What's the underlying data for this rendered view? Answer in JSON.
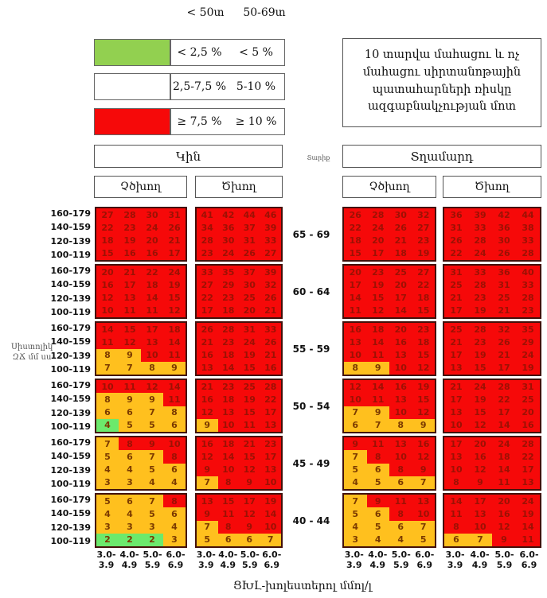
{
  "top_headers": {
    "lt50": "< 50տ",
    "a5069": "50-69տ"
  },
  "legend": {
    "rows": [
      {
        "swatch": "legend_green",
        "label_lt50": "< 2,5 %",
        "label_50_69": "< 5 %"
      },
      {
        "swatch": "white",
        "label_lt50": "2,5-7,5 %",
        "label_50_69": "5-10 %"
      },
      {
        "swatch": "red",
        "label_lt50": "≥ 7,5 %",
        "label_50_69": "≥ 10 %"
      }
    ]
  },
  "info_box": "10 տարվա մահացու և ոչ մահացու սիրտանոթային պատահարների ռիսկը ազգաբնակչության մոտ",
  "headers": {
    "women": "Կին",
    "men": "Տղամարդ",
    "age_axis": "Տարիք",
    "nonsmoker": "Չծխող",
    "smoker": "Ծխող"
  },
  "axes": {
    "bp_label_line1": "Սիստոլիկ",
    "bp_label_line2": "ԶՃ մմ սս",
    "bp_rows": [
      "160-179",
      "140-159",
      "120-139",
      "100-119"
    ],
    "age_groups": [
      "65 - 69",
      "60 - 64",
      "55 - 59",
      "50 - 54",
      "45 - 49",
      "40 - 44"
    ],
    "chol_ticks": [
      [
        "3.0-",
        "3.9"
      ],
      [
        "4.0-",
        "4.9"
      ],
      [
        "5.0-",
        "5.9"
      ],
      [
        "6.0-",
        "6.9"
      ]
    ],
    "chol_caption": "ՑԽԼ-խոլեստերոլ մմոլ/լ"
  },
  "colors": {
    "red": "#F60909",
    "orange": "#FFC01E",
    "green": "#6CE96C",
    "legend_green": "#92D050",
    "white": "#FFFFFF"
  },
  "chart_data": {
    "type": "heatmap",
    "title": "10 տարվա մահացու և ոչ մահացու սիրտանոթային պատահարների ռիսկը ազգաբնակչության մոտ",
    "x_axis": {
      "label": "ՑԽԼ-խոլեստերոլ մմոլ/լ",
      "bins": [
        "3.0-3.9",
        "4.0-4.9",
        "5.0-5.9",
        "6.0-6.9"
      ]
    },
    "y_axis": {
      "label": "Սիստոլիկ ԶՃ մմ սս",
      "bins": [
        "160-179",
        "140-159",
        "120-139",
        "100-119"
      ]
    },
    "age_groups": [
      "65-69",
      "60-64",
      "55-59",
      "50-54",
      "45-49",
      "40-44"
    ],
    "risk_bands": {
      "green_lt50": "< 2,5 %",
      "green_50_69": "< 5 %",
      "mid_lt50": "2,5-7,5 %",
      "mid_50_69": "5-10 %",
      "red_lt50": "≥ 7,5 %",
      "red_50_69": "≥ 10 %"
    },
    "color_key": {
      "r": "red",
      "o": "orange",
      "g": "green"
    },
    "panels": {
      "women_nonsmoker": [
        {
          "age": "65-69",
          "values": [
            [
              27,
              28,
              30,
              31
            ],
            [
              22,
              23,
              24,
              26
            ],
            [
              18,
              19,
              20,
              21
            ],
            [
              15,
              16,
              16,
              17
            ]
          ],
          "colors": [
            "rrrr",
            "rrrr",
            "rrrr",
            "rrrr"
          ]
        },
        {
          "age": "60-64",
          "values": [
            [
              20,
              21,
              22,
              24
            ],
            [
              16,
              17,
              18,
              19
            ],
            [
              12,
              13,
              14,
              15
            ],
            [
              10,
              11,
              11,
              12
            ]
          ],
          "colors": [
            "rrrr",
            "rrrr",
            "rrrr",
            "rrrr"
          ]
        },
        {
          "age": "55-59",
          "values": [
            [
              14,
              15,
              17,
              18
            ],
            [
              11,
              12,
              13,
              14
            ],
            [
              8,
              9,
              10,
              11
            ],
            [
              7,
              7,
              8,
              9
            ]
          ],
          "colors": [
            "rrrr",
            "rrrr",
            "oorr",
            "oooo"
          ]
        },
        {
          "age": "50-54",
          "values": [
            [
              10,
              11,
              12,
              14
            ],
            [
              8,
              9,
              9,
              11
            ],
            [
              6,
              6,
              7,
              8
            ],
            [
              4,
              5,
              5,
              6
            ]
          ],
          "colors": [
            "rrrr",
            "ooor",
            "oooo",
            "gooo"
          ]
        },
        {
          "age": "45-49",
          "values": [
            [
              7,
              8,
              9,
              10
            ],
            [
              5,
              6,
              7,
              8
            ],
            [
              4,
              4,
              5,
              6
            ],
            [
              3,
              3,
              4,
              4
            ]
          ],
          "colors": [
            "orrr",
            "ooor",
            "oooo",
            "oooo"
          ]
        },
        {
          "age": "40-44",
          "values": [
            [
              5,
              6,
              7,
              8
            ],
            [
              4,
              4,
              5,
              6
            ],
            [
              3,
              3,
              3,
              4
            ],
            [
              2,
              2,
              2,
              3
            ]
          ],
          "colors": [
            "ooor",
            "oooo",
            "oooo",
            "gggo"
          ]
        }
      ],
      "women_smoker": [
        {
          "age": "65-69",
          "values": [
            [
              41,
              42,
              44,
              46
            ],
            [
              34,
              36,
              37,
              39
            ],
            [
              28,
              30,
              31,
              33
            ],
            [
              23,
              24,
              26,
              27
            ]
          ],
          "colors": [
            "rrrr",
            "rrrr",
            "rrrr",
            "rrrr"
          ]
        },
        {
          "age": "60-64",
          "values": [
            [
              33,
              35,
              37,
              39
            ],
            [
              27,
              29,
              30,
              32
            ],
            [
              22,
              23,
              25,
              26
            ],
            [
              17,
              18,
              20,
              21
            ]
          ],
          "colors": [
            "rrrr",
            "rrrr",
            "rrrr",
            "rrrr"
          ]
        },
        {
          "age": "55-59",
          "values": [
            [
              26,
              28,
              31,
              33
            ],
            [
              21,
              23,
              24,
              26
            ],
            [
              16,
              18,
              19,
              21
            ],
            [
              13,
              14,
              15,
              16
            ]
          ],
          "colors": [
            "rrrr",
            "rrrr",
            "rrrr",
            "rrrr"
          ]
        },
        {
          "age": "50-54",
          "values": [
            [
              21,
              23,
              25,
              28
            ],
            [
              16,
              18,
              19,
              22
            ],
            [
              12,
              13,
              15,
              17
            ],
            [
              9,
              10,
              11,
              13
            ]
          ],
          "colors": [
            "rrrr",
            "rrrr",
            "rrrr",
            "orrr"
          ]
        },
        {
          "age": "45-49",
          "values": [
            [
              16,
              18,
              21,
              23
            ],
            [
              12,
              14,
              15,
              17
            ],
            [
              9,
              10,
              12,
              13
            ],
            [
              7,
              8,
              9,
              10
            ]
          ],
          "colors": [
            "rrrr",
            "rrrr",
            "rrrr",
            "orrr"
          ]
        },
        {
          "age": "40-44",
          "values": [
            [
              13,
              15,
              17,
              19
            ],
            [
              9,
              11,
              12,
              14
            ],
            [
              7,
              8,
              9,
              10
            ],
            [
              5,
              6,
              6,
              7
            ]
          ],
          "colors": [
            "rrrr",
            "rrrr",
            "orrr",
            "oooo"
          ]
        }
      ],
      "men_nonsmoker": [
        {
          "age": "65-69",
          "values": [
            [
              26,
              28,
              30,
              32
            ],
            [
              22,
              24,
              26,
              27
            ],
            [
              18,
              20,
              21,
              23
            ],
            [
              15,
              17,
              18,
              19
            ]
          ],
          "colors": [
            "rrrr",
            "rrrr",
            "rrrr",
            "rrrr"
          ]
        },
        {
          "age": "60-64",
          "values": [
            [
              20,
              23,
              25,
              27
            ],
            [
              17,
              19,
              20,
              22
            ],
            [
              14,
              15,
              17,
              18
            ],
            [
              11,
              12,
              14,
              15
            ]
          ],
          "colors": [
            "rrrr",
            "rrrr",
            "rrrr",
            "rrrr"
          ]
        },
        {
          "age": "55-59",
          "values": [
            [
              16,
              18,
              20,
              23
            ],
            [
              13,
              14,
              16,
              18
            ],
            [
              10,
              11,
              13,
              15
            ],
            [
              8,
              9,
              10,
              12
            ]
          ],
          "colors": [
            "rrrr",
            "rrrr",
            "rrrr",
            "oorr"
          ]
        },
        {
          "age": "50-54",
          "values": [
            [
              12,
              14,
              16,
              19
            ],
            [
              10,
              11,
              13,
              15
            ],
            [
              7,
              9,
              10,
              12
            ],
            [
              6,
              7,
              8,
              9
            ]
          ],
          "colors": [
            "rrrr",
            "rrrr",
            "oorr",
            "oooo"
          ]
        },
        {
          "age": "45-49",
          "values": [
            [
              9,
              11,
              13,
              16
            ],
            [
              7,
              8,
              10,
              12
            ],
            [
              5,
              6,
              8,
              9
            ],
            [
              4,
              5,
              6,
              7
            ]
          ],
          "colors": [
            "rrrr",
            "orrr",
            "oorr",
            "oooo"
          ]
        },
        {
          "age": "40-44",
          "values": [
            [
              7,
              9,
              11,
              13
            ],
            [
              5,
              6,
              8,
              10
            ],
            [
              4,
              5,
              6,
              7
            ],
            [
              3,
              4,
              4,
              5
            ]
          ],
          "colors": [
            "orrr",
            "oorr",
            "oooo",
            "oooo"
          ]
        }
      ],
      "men_smoker": [
        {
          "age": "65-69",
          "values": [
            [
              36,
              39,
              42,
              44
            ],
            [
              31,
              33,
              36,
              38
            ],
            [
              26,
              28,
              30,
              33
            ],
            [
              22,
              24,
              26,
              28
            ]
          ],
          "colors": [
            "rrrr",
            "rrrr",
            "rrrr",
            "rrrr"
          ]
        },
        {
          "age": "60-64",
          "values": [
            [
              31,
              33,
              36,
              40
            ],
            [
              25,
              28,
              31,
              33
            ],
            [
              21,
              23,
              25,
              28
            ],
            [
              17,
              19,
              21,
              23
            ]
          ],
          "colors": [
            "rrrr",
            "rrrr",
            "rrrr",
            "rrrr"
          ]
        },
        {
          "age": "55-59",
          "values": [
            [
              25,
              28,
              32,
              35
            ],
            [
              21,
              23,
              26,
              29
            ],
            [
              17,
              19,
              21,
              24
            ],
            [
              13,
              15,
              17,
              19
            ]
          ],
          "colors": [
            "rrrr",
            "rrrr",
            "rrrr",
            "rrrr"
          ]
        },
        {
          "age": "50-54",
          "values": [
            [
              21,
              24,
              28,
              31
            ],
            [
              17,
              19,
              22,
              25
            ],
            [
              13,
              15,
              17,
              20
            ],
            [
              10,
              12,
              14,
              16
            ]
          ],
          "colors": [
            "rrrr",
            "rrrr",
            "rrrr",
            "rrrr"
          ]
        },
        {
          "age": "45-49",
          "values": [
            [
              17,
              20,
              24,
              28
            ],
            [
              13,
              16,
              18,
              22
            ],
            [
              10,
              12,
              14,
              17
            ],
            [
              8,
              9,
              11,
              13
            ]
          ],
          "colors": [
            "rrrr",
            "rrrr",
            "rrrr",
            "rrrr"
          ]
        },
        {
          "age": "40-44",
          "values": [
            [
              14,
              17,
              20,
              24
            ],
            [
              11,
              13,
              16,
              19
            ],
            [
              8,
              10,
              12,
              14
            ],
            [
              6,
              7,
              9,
              11
            ]
          ],
          "colors": [
            "rrrr",
            "rrrr",
            "rrrr",
            "oorr"
          ]
        }
      ]
    }
  }
}
